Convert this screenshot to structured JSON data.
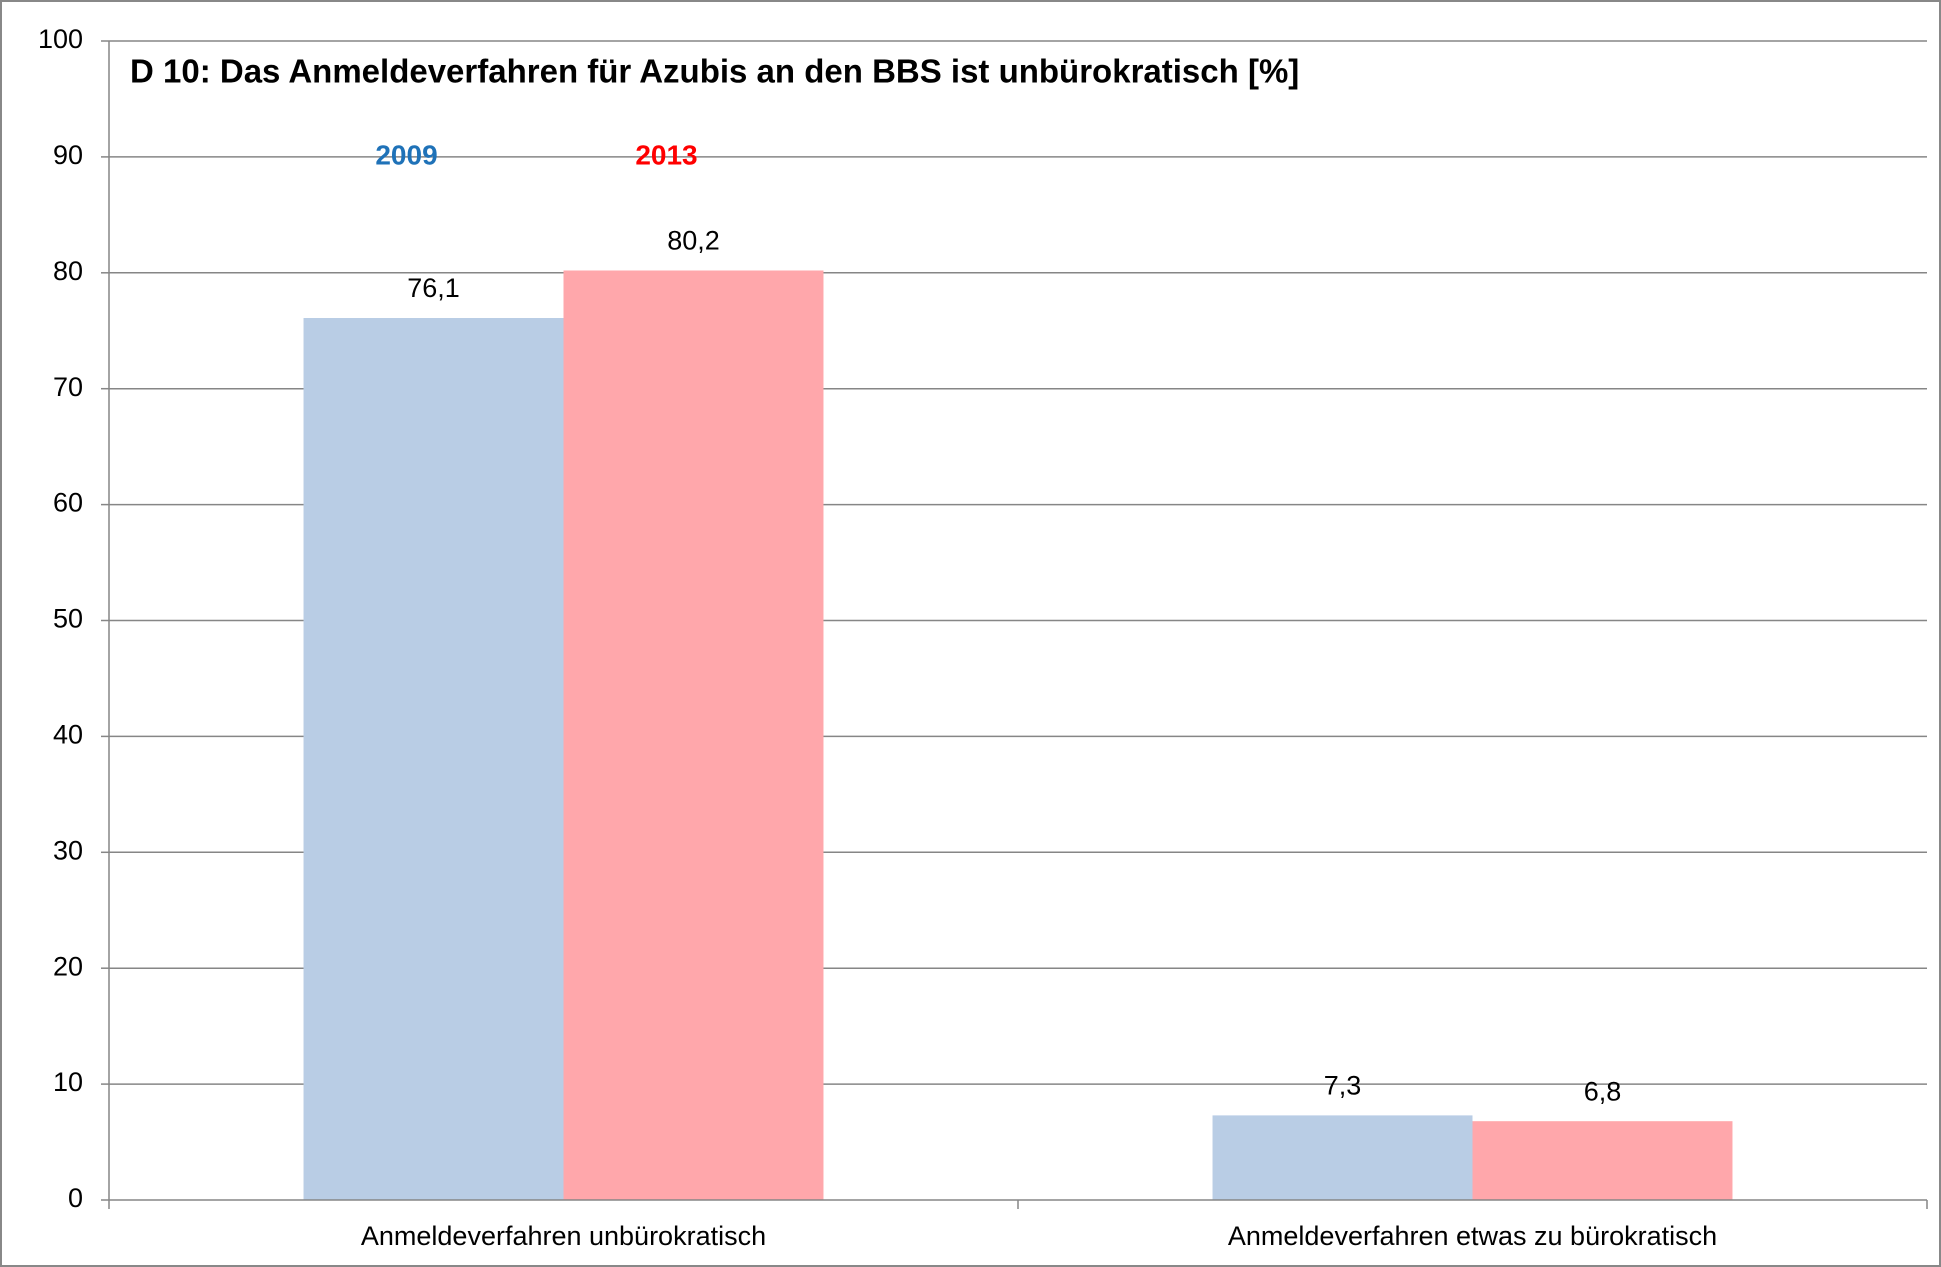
{
  "chart_data": {
    "type": "bar",
    "title": "D 10: Das Anmeldeverfahren für Azubis an den BBS ist unbürokratisch [%]",
    "categories": [
      "Anmeldeverfahren unbürokratisch",
      "Anmeldeverfahren etwas zu bürokratisch"
    ],
    "series": [
      {
        "name": "2009",
        "color": "#b9cde5",
        "legend_color": "#1f72b8",
        "values": [
          76.1,
          7.3
        ],
        "value_labels": [
          "76,1",
          "7,3"
        ]
      },
      {
        "name": "2013",
        "color": "#ffa7ab",
        "legend_color": "#ff0000",
        "values": [
          80.2,
          6.8
        ],
        "value_labels": [
          "80,2",
          "6,8"
        ]
      }
    ],
    "ylim": [
      0,
      100
    ],
    "yticks": [
      0,
      10,
      20,
      30,
      40,
      50,
      60,
      70,
      80,
      90,
      100
    ],
    "grid": true
  }
}
